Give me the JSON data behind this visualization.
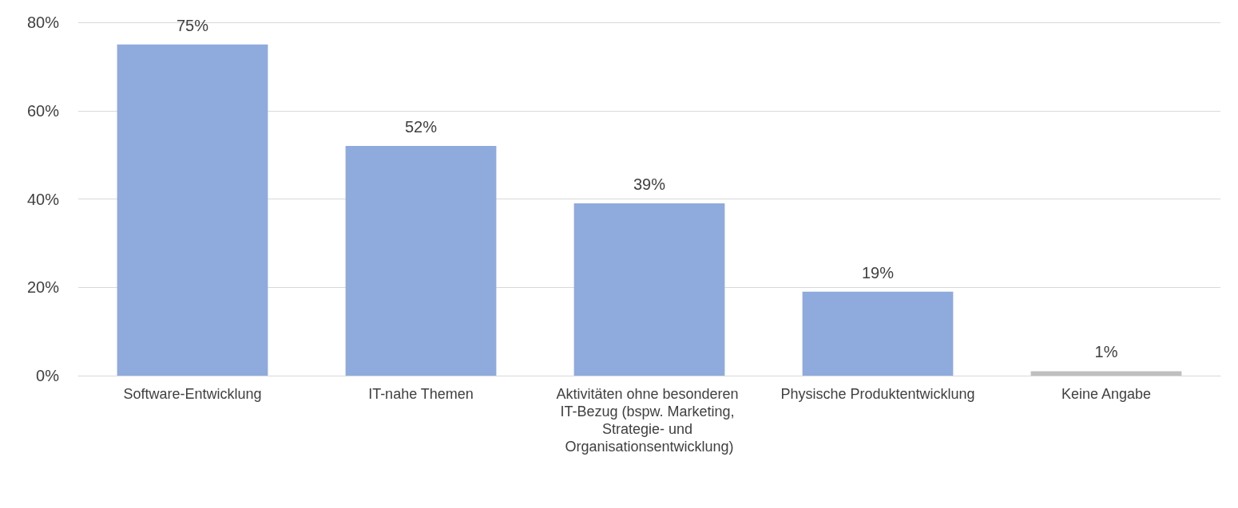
{
  "chart_data": {
    "type": "bar",
    "categories": [
      "Software-Entwicklung",
      "IT-nahe Themen",
      "Aktivitäten ohne besonderen IT-Bezug (bspw. Marketing, Strategie- und Organisationsentwicklung)",
      "Physische Produktentwicklung",
      "Keine Angabe"
    ],
    "values": [
      75,
      52,
      39,
      19,
      1
    ],
    "colors": [
      "#8faadc",
      "#8faadc",
      "#8faadc",
      "#8faadc",
      "#bfbfbf"
    ],
    "value_labels": [
      "75%",
      "52%",
      "39%",
      "19%",
      "1%"
    ],
    "ylim": [
      0,
      80
    ],
    "yticks": [
      {
        "value": 0,
        "label": "0%"
      },
      {
        "value": 20,
        "label": "20%"
      },
      {
        "value": 40,
        "label": "40%"
      },
      {
        "value": 60,
        "label": "60%"
      },
      {
        "value": 80,
        "label": "80%"
      }
    ],
    "grid": "y"
  }
}
